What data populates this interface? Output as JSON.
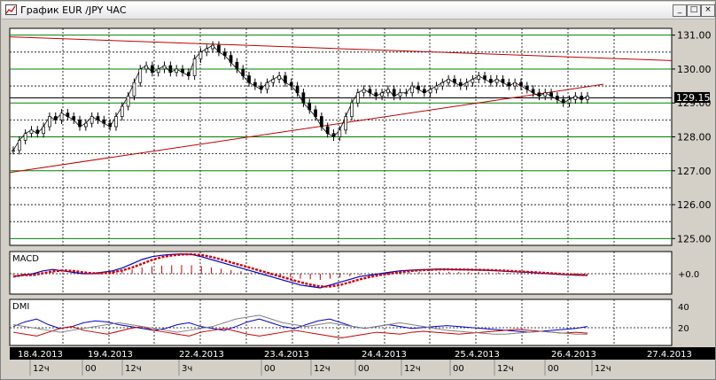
{
  "window": {
    "title": "График EUR /JPY  ЧАС",
    "buttons": {
      "minimize": "_",
      "maximize": "□",
      "close": "×"
    }
  },
  "chart_data": [
    {
      "type": "line",
      "subtype": "candlestick",
      "symbol": "EUR/JPY",
      "timeframe": "ЧАС",
      "ylim": [
        124.8,
        131.2
      ],
      "y_ticks": [
        "131.00",
        "130.00",
        "129.00",
        "128.00",
        "127.00",
        "126.00",
        "125.00"
      ],
      "current_price": "129.15",
      "horizontal_levels": [
        131.0,
        130.0,
        129.0,
        128.0,
        127.0,
        125.0
      ],
      "close_series": [
        127.6,
        127.9,
        128.1,
        128.2,
        128.1,
        128.3,
        128.6,
        128.5,
        128.7,
        128.6,
        128.5,
        128.3,
        128.4,
        128.6,
        128.5,
        128.4,
        128.3,
        128.6,
        128.9,
        129.2,
        129.6,
        130.0,
        130.1,
        129.9,
        130.0,
        130.1,
        129.9,
        130.0,
        129.9,
        129.8,
        130.3,
        130.5,
        130.6,
        130.7,
        130.5,
        130.4,
        130.2,
        130.0,
        129.8,
        129.6,
        129.5,
        129.4,
        129.6,
        129.7,
        129.8,
        129.6,
        129.5,
        129.3,
        129.0,
        128.8,
        128.6,
        128.3,
        128.1,
        128.0,
        128.2,
        128.6,
        129.0,
        129.3,
        129.4,
        129.3,
        129.2,
        129.3,
        129.4,
        129.2,
        129.3,
        129.3,
        129.5,
        129.4,
        129.3,
        129.4,
        129.5,
        129.6,
        129.7,
        129.6,
        129.5,
        129.6,
        129.7,
        129.8,
        129.7,
        129.6,
        129.7,
        129.6,
        129.5,
        129.6,
        129.5,
        129.4,
        129.3,
        129.2,
        129.3,
        129.2,
        129.1,
        129.0,
        129.1,
        129.2,
        129.1,
        129.2
      ]
    },
    {
      "type": "line",
      "title": "MACD",
      "y_ticks": [
        "+0.0"
      ],
      "series": [
        {
          "values": [
            -0.1,
            -0.05,
            0.0,
            0.1,
            0.15,
            0.1,
            0.05,
            0.0,
            0.0,
            0.05,
            0.1,
            0.2,
            0.35,
            0.5,
            0.6,
            0.65,
            0.68,
            0.7,
            0.68,
            0.6,
            0.5,
            0.4,
            0.3,
            0.2,
            0.1,
            0.0,
            -0.1,
            -0.2,
            -0.3,
            -0.4,
            -0.45,
            -0.5,
            -0.4,
            -0.3,
            -0.2,
            -0.1,
            -0.05,
            0.0,
            0.05,
            0.1,
            0.12,
            0.14,
            0.15,
            0.16,
            0.15,
            0.14,
            0.14,
            0.13,
            0.12,
            0.1,
            0.08,
            0.06,
            0.05,
            0.02,
            0.0,
            -0.02,
            -0.04,
            -0.05,
            -0.06
          ]
        }
      ]
    },
    {
      "type": "line",
      "title": "DMI",
      "y_ticks": [
        "40",
        "20"
      ],
      "series": [
        {
          "values": [
            20,
            25,
            28,
            22,
            18,
            20,
            24,
            26,
            25,
            22,
            20,
            18,
            16,
            18,
            22,
            24,
            20,
            18,
            16,
            20,
            25,
            28,
            24,
            20,
            18,
            22,
            26,
            28,
            24,
            20,
            18,
            20,
            22,
            20,
            18,
            19,
            20,
            21,
            20,
            19,
            18,
            17,
            16,
            15,
            14,
            15,
            16,
            17,
            18,
            20
          ]
        },
        {
          "values": [
            14,
            12,
            10,
            14,
            18,
            20,
            16,
            14,
            12,
            15,
            18,
            20,
            16,
            14,
            12,
            10,
            14,
            16,
            18,
            15,
            12,
            10,
            12,
            14,
            16,
            14,
            12,
            10,
            8,
            10,
            12,
            14,
            13,
            12,
            14,
            15,
            14,
            13,
            12,
            13,
            14,
            15,
            16,
            17,
            16,
            15,
            14,
            13,
            14,
            13
          ]
        },
        {
          "values": [
            22,
            20,
            18,
            16,
            14,
            16,
            18,
            20,
            22,
            24,
            22,
            20,
            18,
            16,
            14,
            16,
            18,
            20,
            24,
            28,
            30,
            32,
            28,
            24,
            22,
            20,
            22,
            24,
            22,
            20,
            18,
            20,
            22,
            24,
            22,
            20,
            18,
            16,
            15,
            14,
            13,
            12,
            12,
            13,
            14,
            15,
            14,
            13,
            12,
            12
          ]
        }
      ]
    }
  ],
  "date_labels": [
    "18.4.2013",
    "19.4.2013",
    "22.4.2013",
    "23.4.2013",
    "24.4.2013",
    "25.4.2013",
    "26.4.2013",
    "27.4.2013"
  ],
  "hour_labels": [
    "12ч",
    "00",
    "12ч",
    "3ч",
    "00",
    "12ч",
    "00",
    "12ч",
    "00",
    "12ч",
    "00",
    "12ч"
  ],
  "colors": {
    "chart_bg": "#ffffff",
    "grid": "#000000",
    "green_level": "#008000",
    "trend_red": "#c00000",
    "candles": "#000000",
    "macd_line": "#0000cc",
    "macd_signal": "#cc0000",
    "dmi_plus": "#0000cc",
    "dmi_minus": "#cc0000",
    "adx": "#808080",
    "label_bg": "#000000",
    "label_fg": "#ffffff"
  }
}
